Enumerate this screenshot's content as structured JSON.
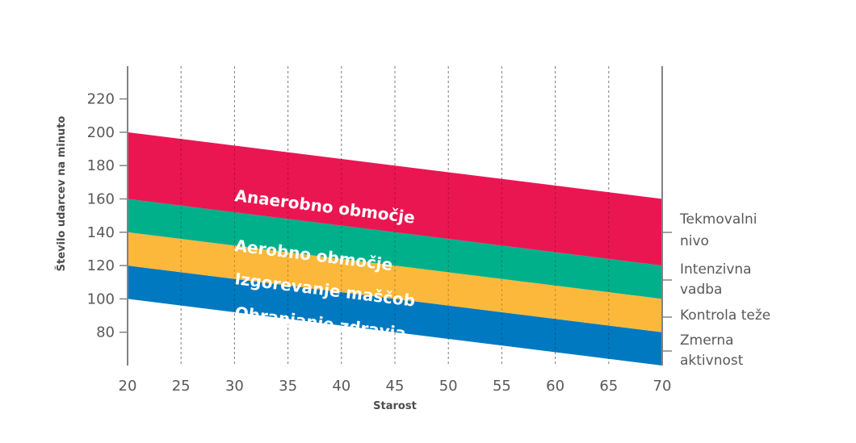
{
  "chart_data": {
    "type": "area",
    "title": "",
    "xlabel": "Starost",
    "ylabel": "Število udarcev na minuto",
    "xlim": [
      20,
      70
    ],
    "ylim": [
      60,
      230
    ],
    "x_ticks": [
      20,
      25,
      30,
      35,
      40,
      45,
      50,
      55,
      60,
      65,
      70
    ],
    "y_ticks": [
      80,
      100,
      120,
      140,
      160,
      180,
      200,
      220
    ],
    "grid": "vertical dashed",
    "x": [
      20,
      70
    ],
    "bands": [
      {
        "name": "Ohranjanje zdravja",
        "lower": [
          100,
          60
        ],
        "upper": [
          120,
          80
        ],
        "color": "#0079c1"
      },
      {
        "name": "Izgorevanje maščob",
        "lower": [
          120,
          80
        ],
        "upper": [
          140,
          100
        ],
        "color": "#fbb83b"
      },
      {
        "name": "Aerobno območje",
        "lower": [
          140,
          100
        ],
        "upper": [
          160,
          120
        ],
        "color": "#00b08b"
      },
      {
        "name": "Anaerobno območje",
        "lower": [
          160,
          120
        ],
        "upper": [
          200,
          160
        ],
        "color": "#ea1651"
      }
    ],
    "right_annotations": [
      "Tekmovalni nivo",
      "Intenzivna vadba",
      "Kontrola teže",
      "Zmerna aktivnost"
    ]
  }
}
